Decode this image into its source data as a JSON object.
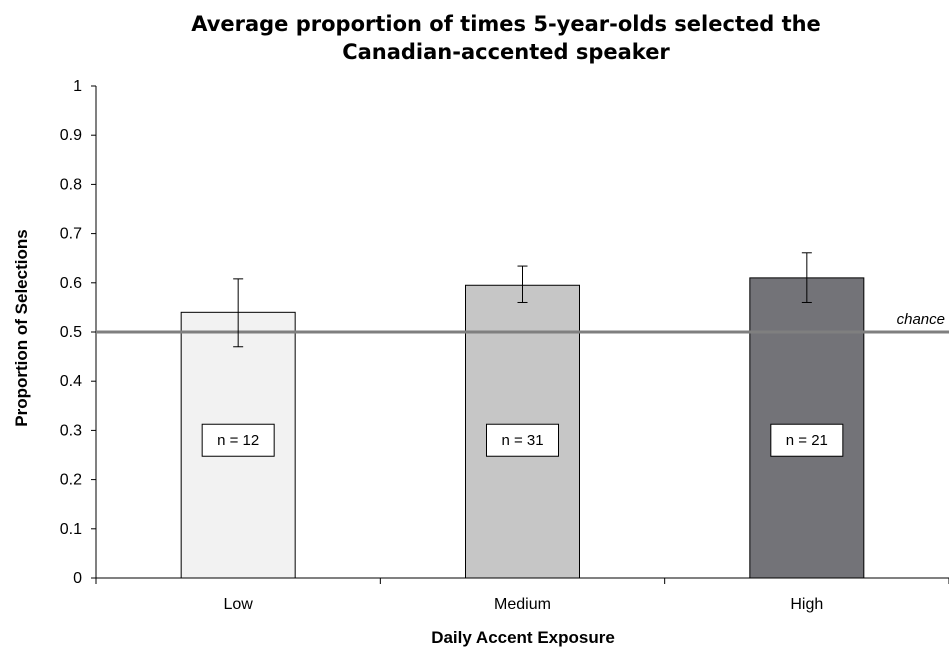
{
  "chart_data": {
    "type": "bar",
    "title_lines": [
      "Average proportion of times 5-year-olds selected the",
      "Canadian-accented speaker"
    ],
    "xlabel": "Daily Accent Exposure",
    "ylabel": "Proportion of Selections",
    "ylim": [
      0,
      1
    ],
    "yticks": [
      "0",
      "0.1",
      "0.2",
      "0.3",
      "0.4",
      "0.5",
      "0.6",
      "0.7",
      "0.8",
      "0.9",
      "1"
    ],
    "categories": [
      "Low",
      "Medium",
      "High"
    ],
    "values": [
      0.54,
      0.595,
      0.61
    ],
    "error_low": [
      0.47,
      0.56,
      0.56
    ],
    "error_high": [
      0.608,
      0.634,
      0.661
    ],
    "sample_labels": [
      "n = 12",
      "n = 31",
      "n = 21"
    ],
    "bar_colors": [
      "#f2f2f2",
      "#c6c6c6",
      "#737378"
    ],
    "reference_line": {
      "value": 0.5,
      "label": "chance",
      "color": "#7f7f7f"
    },
    "grid": false,
    "legend": "none"
  }
}
